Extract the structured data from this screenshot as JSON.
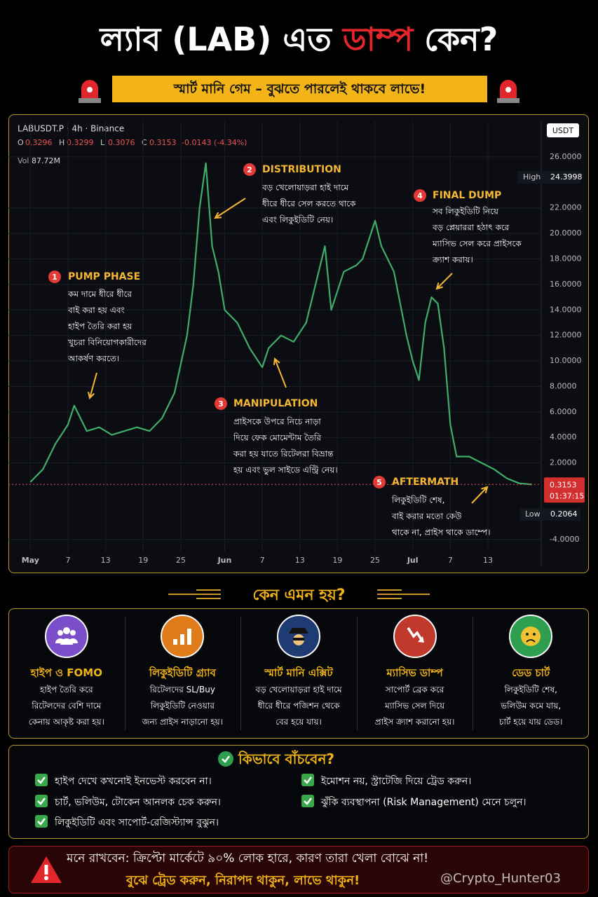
{
  "header": {
    "title_parts": [
      "ল্যাব (LAB) এত",
      "ডাম্প",
      "কেন?"
    ],
    "subtitle": "স্মার্ট মানি গেম – বুঝতে পারলেই থাকবে লাভে!"
  },
  "chart_data": {
    "type": "line",
    "symbol": "LABUSDT.P · 4h · Binance",
    "ohlc": [
      {
        "label": "O",
        "value": 0.3296
      },
      {
        "label": "H",
        "value": 0.3299
      },
      {
        "label": "L",
        "value": 0.3076
      },
      {
        "label": "C",
        "value": 0.3153
      }
    ],
    "change": "-0.0143 (-4.34%)",
    "volume": {
      "label": "Vol",
      "value": "87.72M"
    },
    "currency": "USDT",
    "color": "#3fae6a",
    "high": {
      "label": "High",
      "value": 24.3998
    },
    "low": {
      "label": "Low",
      "value": 0.2064
    },
    "last": {
      "value": 0.3153,
      "timer": "01:37:15"
    },
    "x": [
      0,
      2,
      4,
      6,
      7,
      8,
      9,
      11,
      13,
      15,
      17,
      19,
      21,
      23,
      25,
      26,
      27,
      28,
      29,
      30,
      31,
      33,
      35,
      37,
      38,
      40,
      42,
      44,
      46,
      47,
      48,
      50,
      52,
      53,
      55,
      56,
      58,
      60,
      61,
      62,
      63,
      64,
      65,
      66,
      67,
      68,
      70,
      72,
      74,
      76,
      78,
      80
    ],
    "values": [
      0.5,
      1.5,
      3.5,
      5,
      6.5,
      5.5,
      4.5,
      4.8,
      4.2,
      4.5,
      4.8,
      4.5,
      5.5,
      7.5,
      12,
      16,
      22,
      25.5,
      19,
      17,
      14,
      13,
      11,
      9.5,
      11,
      12,
      11.5,
      13,
      17,
      19,
      14,
      17,
      17.5,
      18,
      21,
      19,
      17,
      12,
      10,
      8.5,
      13,
      15,
      14.5,
      11,
      5,
      2.5,
      2.5,
      2,
      1.5,
      0.8,
      0.4,
      0.3153
    ],
    "xlim": [
      -3.5,
      81.5
    ],
    "xticks": [
      {
        "value": 0,
        "label": "May"
      },
      {
        "value": 6,
        "label": "7"
      },
      {
        "value": 12,
        "label": "13"
      },
      {
        "value": 18,
        "label": "19"
      },
      {
        "value": 24,
        "label": "25"
      },
      {
        "value": 31,
        "label": "Jun"
      },
      {
        "value": 37,
        "label": "7"
      },
      {
        "value": 43,
        "label": "13"
      },
      {
        "value": 49,
        "label": "19"
      },
      {
        "value": 55,
        "label": "25"
      },
      {
        "value": 61,
        "label": "Jul"
      },
      {
        "value": 67,
        "label": "7"
      },
      {
        "value": 73,
        "label": "13"
      }
    ],
    "ylim": [
      -5,
      27.7
    ],
    "yticks": [
      {
        "value": 26,
        "label": "26.0000"
      },
      {
        "value": 22,
        "label": "22.0000"
      },
      {
        "value": 20,
        "label": "20.0000"
      },
      {
        "value": 18,
        "label": "18.0000"
      },
      {
        "value": 16,
        "label": "16.0000"
      },
      {
        "value": 14,
        "label": "14.0000"
      },
      {
        "value": 12,
        "label": "12.0000"
      },
      {
        "value": 10,
        "label": "10.0000"
      },
      {
        "value": 8,
        "label": "8.0000"
      },
      {
        "value": 6,
        "label": "6.0000"
      },
      {
        "value": 4,
        "label": "4.0000"
      },
      {
        "value": 2,
        "label": "2.0000"
      },
      {
        "value": -4,
        "label": "-4.0000"
      }
    ],
    "annotations": [
      {
        "number": "1",
        "title": "PUMP PHASE",
        "lines": [
          "কম দামে ধীরে ধীরে",
          "বাই করা হয় এবং",
          "হাইপ তৈরি করা হয়",
          "খুচরা বিনিয়োগকারীদের",
          "আকর্ষণ করতে।"
        ]
      },
      {
        "number": "2",
        "title": "DISTRIBUTION",
        "lines": [
          "বড় খেলোয়াড়রা হাই দামে",
          "ধীরে ধীরে সেল করতে থাকে",
          "এবং লিকুইডিটি নেয়।"
        ]
      },
      {
        "number": "3",
        "title": "MANIPULATION",
        "lines": [
          "প্রাইসকে উপরে নিচে নাড়া",
          "দিয়ে ফেক মোমেন্টাম তৈরি",
          "করা হয় যাতে রিটেলরা বিভ্রান্ত",
          "হয় এবং ভুল সাইডে এন্ট্রি নেয়।"
        ]
      },
      {
        "number": "4",
        "title": "FINAL DUMP",
        "lines": [
          "সব লিকুইডিটি নিয়ে",
          "বড় প্লেয়াররা হঠাৎ করে",
          "ম্যাসিভ সেল করে প্রাইসকে",
          "ক্র্যাশ করায়।"
        ]
      },
      {
        "number": "5",
        "title": "AFTERMATH",
        "lines": [
          "লিকুইডিটি শেষ,",
          "বাই করার মতো কেউ",
          "থাকে না, প্রাইস থাকে ডাম্পে।"
        ]
      }
    ]
  },
  "why": {
    "title": "কেন এমন হয়?",
    "cards": [
      {
        "title": "হাইপ ও FOMO",
        "lines": [
          "হাইপ তৈরি করে",
          "রিটেলদের বেশি দামে",
          "কেনায় আকৃষ্ট করা হয়।"
        ]
      },
      {
        "title": "লিকুইডিটি গ্র্যাব",
        "lines": [
          "রিটেলদের SL/Buy",
          "লিকুইডিটি নেওয়ার",
          "জন্য প্রাইস নাড়ানো হয়।"
        ]
      },
      {
        "title": "স্মার্ট মানি এক্সিট",
        "lines": [
          "বড় খেলোয়াড়রা হাই দামে",
          "ধীরে ধীরে পজিশন থেকে",
          "বের হয়ে যায়।"
        ]
      },
      {
        "title": "ম্যাসিভ ডাম্প",
        "lines": [
          "সাপোর্ট ব্রেক করে",
          "ম্যাসিভ সেল দিয়ে",
          "প্রাইস ক্র্যাশ করানো হয়।"
        ]
      },
      {
        "title": "ডেড চার্ট",
        "lines": [
          "লিকুইডিটি শেষ,",
          "ভলিউম কমে যায়,",
          "চার্ট হয়ে যায় ডেড।"
        ]
      }
    ]
  },
  "tips": {
    "title": "কিভাবে বাঁচবেন?",
    "items": [
      "হাইপ দেখে কখনোই ইনভেস্ট করবেন না।",
      "ইমোশন নয়, স্ট্রাটেজি দিয়ে ট্রেড করুন।",
      "চার্ট, ভলিউম, টোকেন আনলক চেক করুন।",
      "ঝুঁকি ব্যবস্থাপনা (Risk Management) মেনে চলুন।",
      "লিকুইডিটি এবং সাপোর্ট-রেজিস্ট্যান্স বুঝুন।"
    ]
  },
  "footer": {
    "line1": "মনে রাখবেন: ক্রিপ্টো মার্কেটে ৯০% লোক হারে, কারণ তারা খেলা বোঝে না!",
    "line2": "বুঝে ট্রেড করুন, নিরাপদ থাকুন, লাভে থাকুন!",
    "watermark": "@Crypto_Hunter03"
  }
}
